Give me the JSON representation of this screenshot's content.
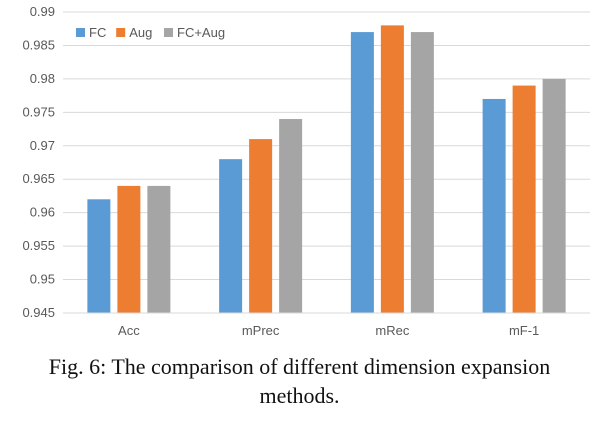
{
  "caption": {
    "line1": "Fig. 6: The comparison of different dimension expansion",
    "line2": "methods."
  },
  "chart_data": {
    "type": "bar",
    "categories": [
      "Acc",
      "mPrec",
      "mRec",
      "mF-1"
    ],
    "series": [
      {
        "name": "FC",
        "color": "#5B9BD5",
        "values": [
          0.962,
          0.968,
          0.987,
          0.977
        ]
      },
      {
        "name": "Aug",
        "color": "#ED7D31",
        "values": [
          0.964,
          0.971,
          0.988,
          0.979
        ]
      },
      {
        "name": "FC+Aug",
        "color": "#A5A5A5",
        "values": [
          0.964,
          0.974,
          0.987,
          0.98
        ]
      }
    ],
    "yticks": [
      "0.945",
      "0.95",
      "0.955",
      "0.96",
      "0.965",
      "0.97",
      "0.975",
      "0.98",
      "0.985",
      "0.99"
    ],
    "ylim": [
      0.945,
      0.99
    ],
    "grid": true,
    "legend_position": "top-left"
  }
}
